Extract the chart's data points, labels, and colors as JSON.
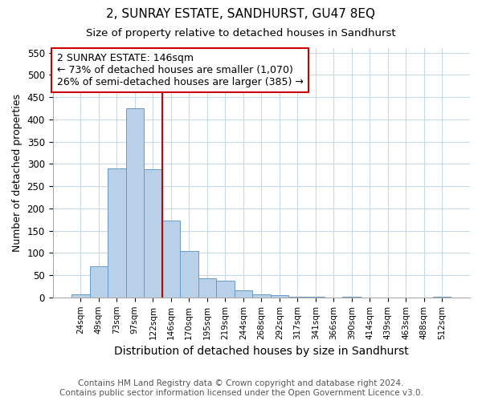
{
  "title": "2, SUNRAY ESTATE, SANDHURST, GU47 8EQ",
  "subtitle": "Size of property relative to detached houses in Sandhurst",
  "xlabel": "Distribution of detached houses by size in Sandhurst",
  "ylabel": "Number of detached properties",
  "categories": [
    "24sqm",
    "49sqm",
    "73sqm",
    "97sqm",
    "122sqm",
    "146sqm",
    "170sqm",
    "195sqm",
    "219sqm",
    "244sqm",
    "268sqm",
    "292sqm",
    "317sqm",
    "341sqm",
    "366sqm",
    "390sqm",
    "414sqm",
    "439sqm",
    "463sqm",
    "488sqm",
    "512sqm"
  ],
  "values": [
    7,
    70,
    290,
    425,
    288,
    173,
    105,
    43,
    37,
    16,
    7,
    5,
    2,
    1,
    0,
    2,
    0,
    0,
    0,
    0,
    2
  ],
  "bar_color": "#b8d0e8",
  "bar_edge_color": "#6699cc",
  "highlight_index": 5,
  "highlight_line_color": "#cc0000",
  "annotation_line1": "2 SUNRAY ESTATE: 146sqm",
  "annotation_line2": "← 73% of detached houses are smaller (1,070)",
  "annotation_line3": "26% of semi-detached houses are larger (385) →",
  "annotation_box_color": "#ffffff",
  "annotation_box_edge_color": "#cc0000",
  "ylim": [
    0,
    560
  ],
  "yticks": [
    0,
    50,
    100,
    150,
    200,
    250,
    300,
    350,
    400,
    450,
    500,
    550
  ],
  "footer_line1": "Contains HM Land Registry data © Crown copyright and database right 2024.",
  "footer_line2": "Contains public sector information licensed under the Open Government Licence v3.0.",
  "bg_color": "#ffffff",
  "plot_bg_color": "#ffffff",
  "grid_color": "#c8d8e8",
  "title_fontsize": 11,
  "subtitle_fontsize": 9.5,
  "annotation_fontsize": 9,
  "ylabel_fontsize": 9,
  "xlabel_fontsize": 10,
  "footer_fontsize": 7.5
}
